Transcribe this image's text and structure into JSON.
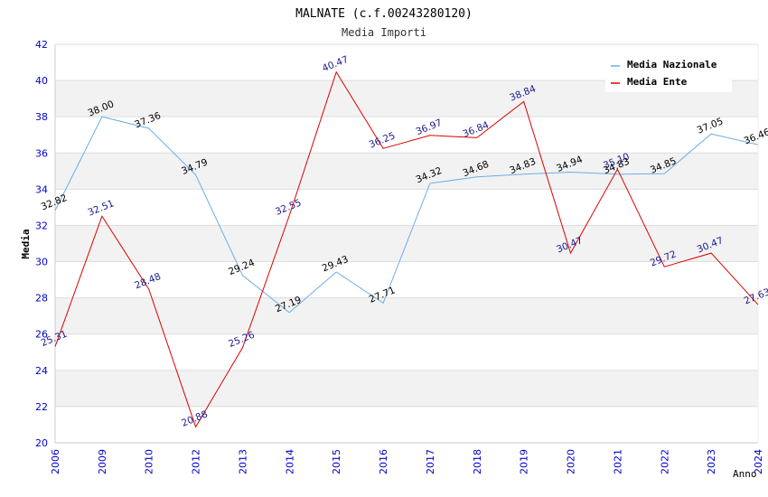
{
  "chart_data": {
    "type": "line",
    "title": "MALNATE (c.f.00243280120)",
    "subtitle": "Media Importi",
    "ylabel": "Media",
    "xlabel": "Anno",
    "x": [
      "2006",
      "2009",
      "2010",
      "2012",
      "2013",
      "2014",
      "2015",
      "2016",
      "2017",
      "2018",
      "2019",
      "2020",
      "2021",
      "2022",
      "2023",
      "2024"
    ],
    "ylim": [
      20,
      42
    ],
    "yticks": [
      20,
      22,
      24,
      26,
      28,
      30,
      32,
      34,
      36,
      38,
      40,
      42
    ],
    "grid": true,
    "legend_position": "top-right",
    "series": [
      {
        "name": "Media Nazionale",
        "color": "#6aaee8",
        "label_color": "#000000",
        "values": [
          32.82,
          38.0,
          37.36,
          34.79,
          29.24,
          27.19,
          29.43,
          27.71,
          34.32,
          34.68,
          34.83,
          34.94,
          34.83,
          34.85,
          37.05,
          36.46
        ],
        "labels": [
          "32.82",
          "38.00",
          "37.36",
          "34.79",
          "29.24",
          "27.19",
          "29.43",
          "27.71",
          "34.32",
          "34.68",
          "34.83",
          "34.94",
          "34.83",
          "34.85",
          "37.05",
          "36.46"
        ]
      },
      {
        "name": "Media Ente",
        "color": "#dd0000",
        "label_color": "#1a1a8c",
        "values": [
          25.31,
          32.51,
          28.48,
          20.88,
          25.26,
          32.55,
          40.47,
          36.25,
          36.97,
          36.84,
          38.84,
          30.47,
          35.1,
          29.72,
          30.47,
          27.63
        ],
        "labels": [
          "25.31",
          "32.51",
          "28.48",
          "20.88",
          "25.26",
          "32.55",
          "40.47",
          "36.25",
          "36.97",
          "36.84",
          "38.84",
          "30.47",
          "35.10",
          "29.72",
          "30.47",
          "27.63"
        ]
      }
    ]
  },
  "colors": {
    "band": "#f2f2f2",
    "grid": "#dddddd",
    "x_tick_color": "#0000cc",
    "y_tick_color": "#0000cc"
  }
}
